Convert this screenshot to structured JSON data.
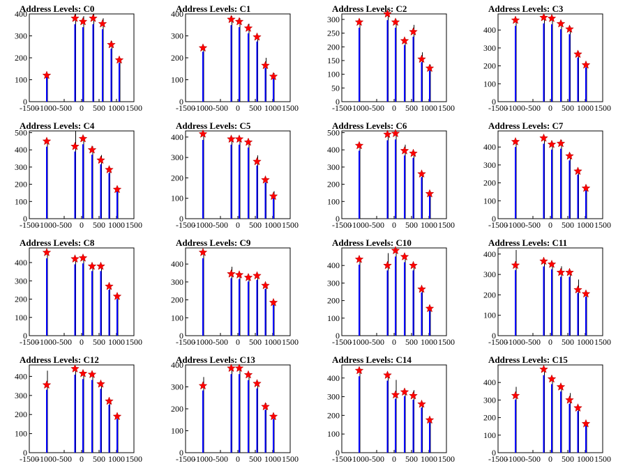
{
  "chart_data": [
    {
      "type": "bar",
      "title": "Address Levels: C0",
      "xlim": [
        -1500,
        1500
      ],
      "ylim": [
        0,
        400
      ],
      "yticks": [
        0,
        100,
        200,
        300,
        400
      ],
      "xticks": [
        -1500,
        -1000,
        -500,
        0,
        500,
        1000,
        1500
      ],
      "peaks": [
        {
          "x": -1000,
          "y": 120,
          "h": 120
        },
        {
          "x": -190,
          "y": 380,
          "h": 400
        },
        {
          "x": 40,
          "y": 365,
          "h": 390
        },
        {
          "x": 330,
          "y": 380,
          "h": 400
        },
        {
          "x": 600,
          "y": 355,
          "h": 380
        },
        {
          "x": 850,
          "y": 260,
          "h": 275
        },
        {
          "x": 1080,
          "y": 190,
          "h": 200
        }
      ]
    },
    {
      "type": "bar",
      "title": "Address Levels: C1",
      "xlim": [
        -1500,
        1500
      ],
      "ylim": [
        0,
        400
      ],
      "yticks": [
        0,
        100,
        200,
        300,
        400
      ],
      "xticks": [
        -1500,
        -1000,
        -500,
        0,
        500,
        1000,
        1500
      ],
      "peaks": [
        {
          "x": -1000,
          "y": 245,
          "h": 255
        },
        {
          "x": -190,
          "y": 375,
          "h": 390
        },
        {
          "x": 40,
          "y": 365,
          "h": 380
        },
        {
          "x": 300,
          "y": 335,
          "h": 355
        },
        {
          "x": 550,
          "y": 295,
          "h": 300
        },
        {
          "x": 790,
          "y": 165,
          "h": 200
        },
        {
          "x": 1020,
          "y": 115,
          "h": 130
        }
      ]
    },
    {
      "type": "bar",
      "title": "Address Levels: C2",
      "xlim": [
        -1500,
        1500
      ],
      "ylim": [
        0,
        320
      ],
      "yticks": [
        0,
        50,
        100,
        150,
        200,
        250,
        300
      ],
      "xticks": [
        -1500,
        -1000,
        -500,
        0,
        500,
        1000,
        1500
      ],
      "peaks": [
        {
          "x": -1000,
          "y": 290,
          "h": 300
        },
        {
          "x": -190,
          "y": 320,
          "h": 330
        },
        {
          "x": 40,
          "y": 290,
          "h": 300
        },
        {
          "x": 300,
          "y": 222,
          "h": 230
        },
        {
          "x": 550,
          "y": 255,
          "h": 280
        },
        {
          "x": 790,
          "y": 155,
          "h": 180
        },
        {
          "x": 1020,
          "y": 122,
          "h": 135
        }
      ]
    },
    {
      "type": "bar",
      "title": "Address Levels: C3",
      "xlim": [
        -1500,
        1500
      ],
      "ylim": [
        0,
        490
      ],
      "yticks": [
        0,
        100,
        200,
        300,
        400
      ],
      "xticks": [
        -1500,
        -1000,
        -500,
        0,
        500,
        1000,
        1500
      ],
      "peaks": [
        {
          "x": -1000,
          "y": 455,
          "h": 465
        },
        {
          "x": -190,
          "y": 470,
          "h": 485
        },
        {
          "x": 40,
          "y": 465,
          "h": 480
        },
        {
          "x": 300,
          "y": 435,
          "h": 450
        },
        {
          "x": 550,
          "y": 405,
          "h": 420
        },
        {
          "x": 790,
          "y": 265,
          "h": 280
        },
        {
          "x": 1020,
          "y": 205,
          "h": 215
        }
      ]
    },
    {
      "type": "bar",
      "title": "Address Levels: C4",
      "xlim": [
        -1500,
        1500
      ],
      "ylim": [
        0,
        510
      ],
      "yticks": [
        0,
        100,
        200,
        300,
        400,
        500
      ],
      "xticks": [
        -1500,
        -1000,
        -500,
        0,
        500,
        1000,
        1500
      ],
      "peaks": [
        {
          "x": -1000,
          "y": 450,
          "h": 460
        },
        {
          "x": -190,
          "y": 420,
          "h": 510
        },
        {
          "x": 40,
          "y": 465,
          "h": 480
        },
        {
          "x": 300,
          "y": 400,
          "h": 420
        },
        {
          "x": 550,
          "y": 340,
          "h": 370
        },
        {
          "x": 790,
          "y": 285,
          "h": 300
        },
        {
          "x": 1020,
          "y": 170,
          "h": 185
        }
      ]
    },
    {
      "type": "bar",
      "title": "Address Levels: C5",
      "xlim": [
        -1500,
        1500
      ],
      "ylim": [
        0,
        430
      ],
      "yticks": [
        0,
        100,
        200,
        300,
        400
      ],
      "xticks": [
        -1500,
        -1000,
        -500,
        0,
        500,
        1000,
        1500
      ],
      "peaks": [
        {
          "x": -1000,
          "y": 415,
          "h": 425
        },
        {
          "x": -190,
          "y": 390,
          "h": 400
        },
        {
          "x": 40,
          "y": 390,
          "h": 400
        },
        {
          "x": 300,
          "y": 375,
          "h": 385
        },
        {
          "x": 550,
          "y": 280,
          "h": 310
        },
        {
          "x": 790,
          "y": 190,
          "h": 200
        },
        {
          "x": 1020,
          "y": 110,
          "h": 135
        }
      ]
    },
    {
      "type": "bar",
      "title": "Address Levels: C6",
      "xlim": [
        -1500,
        1500
      ],
      "ylim": [
        0,
        510
      ],
      "yticks": [
        0,
        100,
        200,
        300,
        400,
        500
      ],
      "xticks": [
        -1500,
        -1000,
        -500,
        0,
        500,
        1000,
        1500
      ],
      "peaks": [
        {
          "x": -1000,
          "y": 425,
          "h": 435
        },
        {
          "x": -190,
          "y": 490,
          "h": 500
        },
        {
          "x": 40,
          "y": 495,
          "h": 505
        },
        {
          "x": 300,
          "y": 395,
          "h": 430
        },
        {
          "x": 550,
          "y": 380,
          "h": 390
        },
        {
          "x": 790,
          "y": 260,
          "h": 270
        },
        {
          "x": 1020,
          "y": 145,
          "h": 160
        }
      ]
    },
    {
      "type": "bar",
      "title": "Address Levels: C7",
      "xlim": [
        -1500,
        1500
      ],
      "ylim": [
        0,
        490
      ],
      "yticks": [
        0,
        100,
        200,
        300,
        400
      ],
      "xticks": [
        -1500,
        -1000,
        -500,
        0,
        500,
        1000,
        1500
      ],
      "peaks": [
        {
          "x": -1000,
          "y": 430,
          "h": 440
        },
        {
          "x": -190,
          "y": 450,
          "h": 460
        },
        {
          "x": 40,
          "y": 415,
          "h": 430
        },
        {
          "x": 300,
          "y": 420,
          "h": 440
        },
        {
          "x": 550,
          "y": 350,
          "h": 365
        },
        {
          "x": 790,
          "y": 265,
          "h": 275
        },
        {
          "x": 1020,
          "y": 170,
          "h": 185
        }
      ]
    },
    {
      "type": "bar",
      "title": "Address Levels: C8",
      "xlim": [
        -1500,
        1500
      ],
      "ylim": [
        0,
        480
      ],
      "yticks": [
        0,
        100,
        200,
        300,
        400
      ],
      "xticks": [
        -1500,
        -1000,
        -500,
        0,
        500,
        1000,
        1500
      ],
      "peaks": [
        {
          "x": -1000,
          "y": 455,
          "h": 465
        },
        {
          "x": -190,
          "y": 420,
          "h": 430
        },
        {
          "x": 40,
          "y": 425,
          "h": 435
        },
        {
          "x": 300,
          "y": 380,
          "h": 390
        },
        {
          "x": 550,
          "y": 380,
          "h": 390
        },
        {
          "x": 790,
          "y": 270,
          "h": 280
        },
        {
          "x": 1020,
          "y": 215,
          "h": 225
        }
      ]
    },
    {
      "type": "bar",
      "title": "Address Levels: C9",
      "xlim": [
        -1500,
        1500
      ],
      "ylim": [
        0,
        490
      ],
      "yticks": [
        0,
        100,
        200,
        300,
        400
      ],
      "xticks": [
        -1500,
        -1000,
        -500,
        0,
        500,
        1000,
        1500
      ],
      "peaks": [
        {
          "x": -1000,
          "y": 465,
          "h": 475
        },
        {
          "x": -190,
          "y": 345,
          "h": 385
        },
        {
          "x": 40,
          "y": 340,
          "h": 350
        },
        {
          "x": 300,
          "y": 325,
          "h": 340
        },
        {
          "x": 550,
          "y": 335,
          "h": 345
        },
        {
          "x": 790,
          "y": 280,
          "h": 290
        },
        {
          "x": 1020,
          "y": 185,
          "h": 195
        }
      ]
    },
    {
      "type": "bar",
      "title": "Address Levels: C10",
      "xlim": [
        -1500,
        1500
      ],
      "ylim": [
        0,
        500
      ],
      "yticks": [
        0,
        100,
        200,
        300,
        400
      ],
      "xticks": [
        -1500,
        -1000,
        -500,
        0,
        500,
        1000,
        1500
      ],
      "peaks": [
        {
          "x": -1000,
          "y": 435,
          "h": 445
        },
        {
          "x": -190,
          "y": 400,
          "h": 470
        },
        {
          "x": 40,
          "y": 485,
          "h": 495
        },
        {
          "x": 300,
          "y": 450,
          "h": 460
        },
        {
          "x": 550,
          "y": 400,
          "h": 410
        },
        {
          "x": 790,
          "y": 265,
          "h": 275
        },
        {
          "x": 1020,
          "y": 155,
          "h": 165
        }
      ]
    },
    {
      "type": "bar",
      "title": "Address Levels: C11",
      "xlim": [
        -1500,
        1500
      ],
      "ylim": [
        0,
        430
      ],
      "yticks": [
        0,
        100,
        200,
        300,
        400
      ],
      "xticks": [
        -1500,
        -1000,
        -500,
        0,
        500,
        1000,
        1500
      ],
      "peaks": [
        {
          "x": -1000,
          "y": 345,
          "h": 420
        },
        {
          "x": -190,
          "y": 365,
          "h": 375
        },
        {
          "x": 40,
          "y": 350,
          "h": 360
        },
        {
          "x": 300,
          "y": 310,
          "h": 340
        },
        {
          "x": 550,
          "y": 310,
          "h": 320
        },
        {
          "x": 790,
          "y": 225,
          "h": 275
        },
        {
          "x": 1020,
          "y": 205,
          "h": 215
        }
      ]
    },
    {
      "type": "bar",
      "title": "Address Levels: C12",
      "xlim": [
        -1500,
        1500
      ],
      "ylim": [
        0,
        460
      ],
      "yticks": [
        0,
        100,
        200,
        300,
        400
      ],
      "xticks": [
        -1500,
        -1000,
        -500,
        0,
        500,
        1000,
        1500
      ],
      "peaks": [
        {
          "x": -1000,
          "y": 355,
          "h": 430
        },
        {
          "x": -190,
          "y": 440,
          "h": 450
        },
        {
          "x": 40,
          "y": 415,
          "h": 425
        },
        {
          "x": 300,
          "y": 410,
          "h": 420
        },
        {
          "x": 550,
          "y": 360,
          "h": 370
        },
        {
          "x": 790,
          "y": 270,
          "h": 280
        },
        {
          "x": 1020,
          "y": 190,
          "h": 200
        }
      ]
    },
    {
      "type": "bar",
      "title": "Address Levels: C13",
      "xlim": [
        -1500,
        1500
      ],
      "ylim": [
        0,
        400
      ],
      "yticks": [
        0,
        100,
        200,
        300,
        400
      ],
      "xticks": [
        -1500,
        -1000,
        -500,
        0,
        500,
        1000,
        1500
      ],
      "peaks": [
        {
          "x": -1000,
          "y": 305,
          "h": 345
        },
        {
          "x": -190,
          "y": 385,
          "h": 395
        },
        {
          "x": 40,
          "y": 385,
          "h": 395
        },
        {
          "x": 300,
          "y": 355,
          "h": 365
        },
        {
          "x": 550,
          "y": 315,
          "h": 325
        },
        {
          "x": 790,
          "y": 210,
          "h": 225
        },
        {
          "x": 1020,
          "y": 165,
          "h": 175
        }
      ]
    },
    {
      "type": "bar",
      "title": "Address Levels: C14",
      "xlim": [
        -1500,
        1500
      ],
      "ylim": [
        0,
        470
      ],
      "yticks": [
        0,
        100,
        200,
        300,
        400
      ],
      "xticks": [
        -1500,
        -1000,
        -500,
        0,
        500,
        1000,
        1500
      ],
      "peaks": [
        {
          "x": -1000,
          "y": 440,
          "h": 450
        },
        {
          "x": -190,
          "y": 415,
          "h": 425
        },
        {
          "x": 40,
          "y": 310,
          "h": 390
        },
        {
          "x": 300,
          "y": 325,
          "h": 335
        },
        {
          "x": 550,
          "y": 305,
          "h": 335
        },
        {
          "x": 790,
          "y": 260,
          "h": 270
        },
        {
          "x": 1020,
          "y": 175,
          "h": 185
        }
      ]
    },
    {
      "type": "bar",
      "title": "Address Levels: C15",
      "xlim": [
        -1500,
        1500
      ],
      "ylim": [
        0,
        500
      ],
      "yticks": [
        0,
        100,
        200,
        300,
        400
      ],
      "xticks": [
        -1500,
        -1000,
        -500,
        0,
        500,
        1000,
        1500
      ],
      "peaks": [
        {
          "x": -1000,
          "y": 325,
          "h": 375
        },
        {
          "x": -190,
          "y": 475,
          "h": 485
        },
        {
          "x": 40,
          "y": 420,
          "h": 430
        },
        {
          "x": 300,
          "y": 375,
          "h": 385
        },
        {
          "x": 550,
          "y": 300,
          "h": 340
        },
        {
          "x": 790,
          "y": 255,
          "h": 265
        },
        {
          "x": 1020,
          "y": 165,
          "h": 175
        }
      ]
    }
  ],
  "colors": {
    "bar": "#0000ff",
    "marker": "#ff0000",
    "axis": "#000000"
  },
  "marker_shape": "star"
}
